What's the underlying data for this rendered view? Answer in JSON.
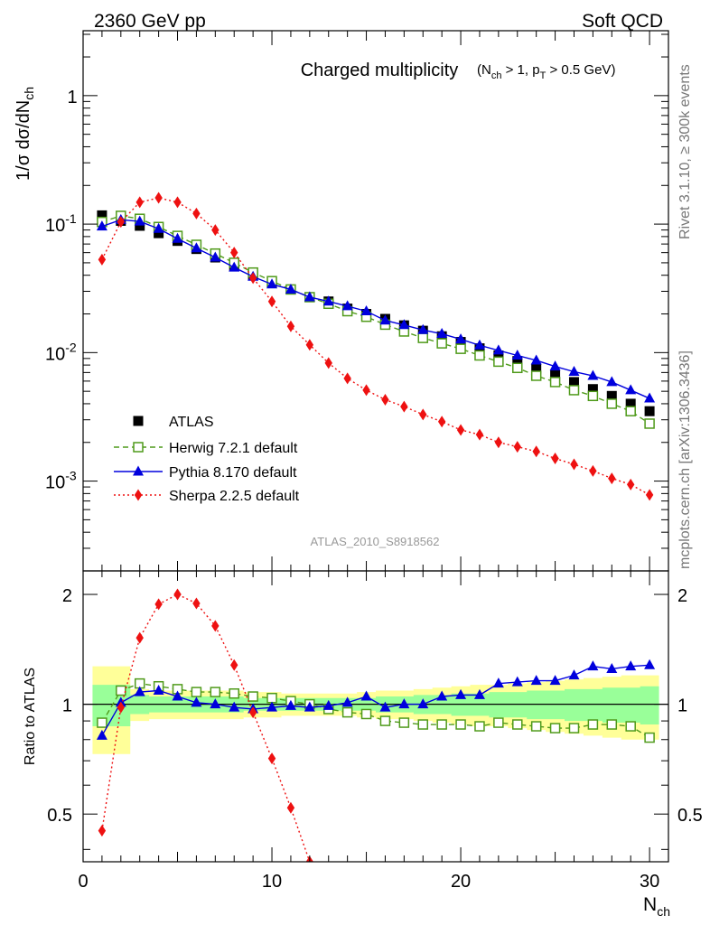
{
  "header": {
    "left": "2360 GeV pp",
    "right": "Soft QCD"
  },
  "side_labels": {
    "rivet": "Rivet 3.1.10, ≥ 300k events",
    "mcplots": "mcplots.cern.ch [arXiv:1306.3436]"
  },
  "colors": {
    "atlas": "#000000",
    "herwig": "#4f9a1a",
    "pythia": "#0000dd",
    "sherpa": "#ee1111",
    "band_outer": "#ffff99",
    "band_inner": "#99ff99"
  },
  "chart_data": [
    {
      "type": "scatter",
      "panel": "main",
      "title": "Charged multiplicity",
      "title_suffix": "(N_ch > 1, p_T > 0.5 GeV)",
      "ylabel": "1/σ dσ/dN_ch",
      "yscale": "log",
      "ylim": [
        0.0002,
        3.2
      ],
      "xlim": [
        0,
        31
      ],
      "y_ticks": [
        "1",
        "10^-1",
        "10^-2",
        "10^-3"
      ],
      "watermark": "ATLAS_2010_S8918562",
      "legend_position": "lower-left",
      "x": [
        1,
        2,
        3,
        4,
        5,
        6,
        7,
        8,
        9,
        10,
        11,
        12,
        13,
        14,
        15,
        16,
        17,
        18,
        19,
        20,
        21,
        22,
        23,
        24,
        25,
        26,
        27,
        28,
        29,
        30
      ],
      "series": [
        {
          "name": "ATLAS",
          "marker": "filled-square",
          "values": [
            0.117,
            0.106,
            0.097,
            0.085,
            0.074,
            0.064,
            0.055,
            0.047,
            0.04,
            0.035,
            0.031,
            0.027,
            0.025,
            0.022,
            0.02,
            0.0183,
            0.0163,
            0.0148,
            0.0134,
            0.0121,
            0.0108,
            0.0095,
            0.0086,
            0.0075,
            0.0067,
            0.0059,
            0.0052,
            0.0046,
            0.004,
            0.0035
          ]
        },
        {
          "name": "Herwig 7.2.1 default",
          "marker": "open-square",
          "line": "dashed",
          "values": [
            0.104,
            0.116,
            0.11,
            0.095,
            0.081,
            0.069,
            0.059,
            0.05,
            0.042,
            0.036,
            0.031,
            0.027,
            0.024,
            0.021,
            0.019,
            0.0165,
            0.0146,
            0.013,
            0.0118,
            0.0107,
            0.0095,
            0.0085,
            0.0076,
            0.0066,
            0.0059,
            0.0051,
            0.0046,
            0.004,
            0.0035,
            0.0028
          ]
        },
        {
          "name": "Pythia 8.170 default",
          "marker": "filled-triangle",
          "line": "solid",
          "values": [
            0.096,
            0.108,
            0.105,
            0.092,
            0.077,
            0.065,
            0.055,
            0.046,
            0.039,
            0.034,
            0.031,
            0.027,
            0.025,
            0.023,
            0.021,
            0.0178,
            0.0164,
            0.015,
            0.014,
            0.0127,
            0.0114,
            0.0104,
            0.0095,
            0.0087,
            0.0078,
            0.0071,
            0.0066,
            0.0059,
            0.0051,
            0.0044
          ]
        },
        {
          "name": "Sherpa 2.2.5 default",
          "marker": "filled-diamond",
          "line": "dotted",
          "values": [
            0.053,
            0.104,
            0.148,
            0.16,
            0.148,
            0.121,
            0.09,
            0.06,
            0.038,
            0.025,
            0.016,
            0.0115,
            0.0083,
            0.0063,
            0.0051,
            0.0043,
            0.0038,
            0.0033,
            0.0029,
            0.0025,
            0.0023,
            0.002,
            0.00185,
            0.0017,
            0.0015,
            0.00135,
            0.0012,
            0.00105,
            0.00094,
            0.00078
          ]
        }
      ]
    },
    {
      "type": "scatter",
      "panel": "ratio",
      "ylabel": "Ratio to ATLAS",
      "xlabel": "N_ch",
      "yscale": "log",
      "ylim": [
        0.37,
        2.32
      ],
      "xlim": [
        0,
        31
      ],
      "y_ticks": [
        0.5,
        1,
        2
      ],
      "x_ticks": [
        0,
        10,
        20,
        30
      ],
      "x": [
        1,
        2,
        3,
        4,
        5,
        6,
        7,
        8,
        9,
        10,
        11,
        12,
        13,
        14,
        15,
        16,
        17,
        18,
        19,
        20,
        21,
        22,
        23,
        24,
        25,
        26,
        27,
        28,
        29,
        30
      ],
      "band_outer": [
        0.27,
        0.27,
        0.1,
        0.09,
        0.09,
        0.09,
        0.09,
        0.09,
        0.08,
        0.08,
        0.07,
        0.07,
        0.07,
        0.07,
        0.08,
        0.09,
        0.09,
        0.1,
        0.11,
        0.12,
        0.13,
        0.13,
        0.14,
        0.15,
        0.16,
        0.17,
        0.18,
        0.19,
        0.2,
        0.2
      ],
      "band_inner": [
        0.13,
        0.13,
        0.06,
        0.05,
        0.05,
        0.05,
        0.05,
        0.05,
        0.04,
        0.04,
        0.04,
        0.04,
        0.04,
        0.04,
        0.04,
        0.05,
        0.05,
        0.06,
        0.06,
        0.07,
        0.07,
        0.08,
        0.08,
        0.09,
        0.09,
        0.1,
        0.1,
        0.11,
        0.11,
        0.12
      ],
      "series": [
        {
          "name": "Herwig 7.2.1 default",
          "values": [
            0.89,
            1.09,
            1.14,
            1.12,
            1.1,
            1.08,
            1.08,
            1.07,
            1.05,
            1.04,
            1.02,
            1.0,
            0.97,
            0.95,
            0.94,
            0.9,
            0.89,
            0.88,
            0.88,
            0.88,
            0.87,
            0.89,
            0.88,
            0.87,
            0.86,
            0.86,
            0.88,
            0.88,
            0.87,
            0.81
          ]
        },
        {
          "name": "Pythia 8.170 default",
          "values": [
            0.82,
            1.01,
            1.08,
            1.09,
            1.05,
            1.01,
            1.0,
            0.98,
            0.97,
            0.98,
            0.99,
            0.98,
            0.99,
            1.01,
            1.05,
            0.98,
            1.0,
            1.0,
            1.05,
            1.06,
            1.06,
            1.14,
            1.15,
            1.16,
            1.16,
            1.2,
            1.27,
            1.25,
            1.27,
            1.28
          ]
        },
        {
          "name": "Sherpa 2.2.5 default",
          "values": [
            0.45,
            0.98,
            1.52,
            1.88,
            2.0,
            1.89,
            1.64,
            1.28,
            0.95,
            0.71,
            0.52,
            0.37
          ]
        }
      ]
    }
  ],
  "legend": [
    {
      "label": "ATLAS"
    },
    {
      "label": "Herwig 7.2.1 default"
    },
    {
      "label": "Pythia 8.170 default"
    },
    {
      "label": "Sherpa 2.2.5 default"
    }
  ]
}
